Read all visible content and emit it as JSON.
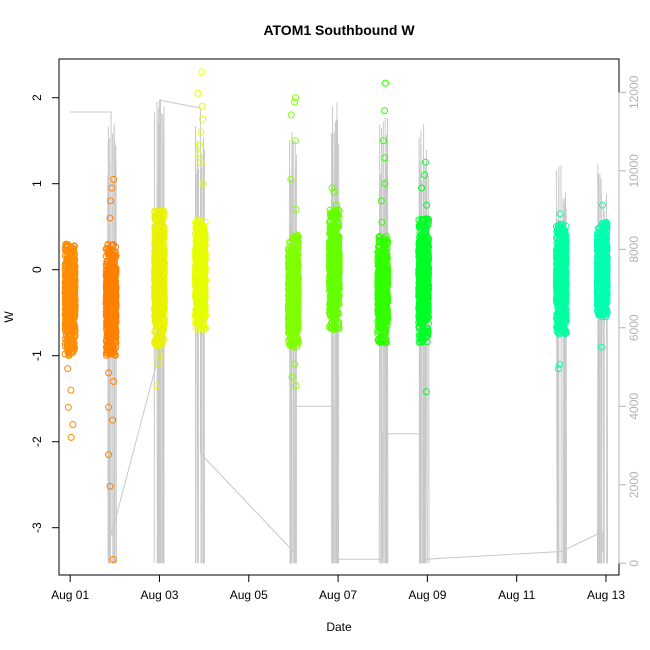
{
  "chart_data": {
    "type": "scatter",
    "title": "ATOM1 Southbound W",
    "xlabel": "Date",
    "ylabel": "W",
    "x_range": [
      "2015-07-31T18:00",
      "2015-08-13T07:00"
    ],
    "ylim": [
      -3.55,
      2.45
    ],
    "y2lim": [
      -300,
      12850
    ],
    "x_ticks": [
      {
        "date": "2015-08-01",
        "label": "Aug 01"
      },
      {
        "date": "2015-08-03",
        "label": "Aug 03"
      },
      {
        "date": "2015-08-05",
        "label": "Aug 05"
      },
      {
        "date": "2015-08-07",
        "label": "Aug 07"
      },
      {
        "date": "2015-08-09",
        "label": "Aug 09"
      },
      {
        "date": "2015-08-11",
        "label": "Aug 11"
      },
      {
        "date": "2015-08-13",
        "label": "Aug 13"
      }
    ],
    "y_ticks": [
      "-3",
      "-2",
      "-1",
      "0",
      "1",
      "2"
    ],
    "y2_ticks": [
      "0",
      "2000",
      "4000",
      "6000",
      "8000",
      "10000",
      "12000"
    ],
    "grid": false,
    "legend": "none",
    "colors": {
      "axis": "#000000",
      "right_axis": "#b3b3b3",
      "depth_line": "#c8c8c8"
    },
    "series": [
      {
        "color": "#ff8c00",
        "x": "2015-08-01T00:00",
        "y_min": -1.0,
        "y_max": 0.3,
        "outliers": [
          -1.95,
          -1.8,
          -1.6,
          -1.4,
          -1.15,
          -0.9,
          -0.72,
          0.25
        ]
      },
      {
        "color": "#ff8000",
        "x": "2015-08-01T22:00",
        "y_min": -1.0,
        "y_max": 0.3,
        "outliers": [
          -3.37,
          -2.52,
          -2.15,
          -1.75,
          -1.6,
          -1.3,
          -1.2,
          0.6,
          0.8,
          0.95,
          1.05
        ]
      },
      {
        "color": "#eaf200",
        "x": "2015-08-03T00:00",
        "y_min": -0.9,
        "y_max": 0.7,
        "outliers": [
          -1.35,
          -1.1,
          -1.0,
          0.65
        ]
      },
      {
        "color": "#e6ff00",
        "x": "2015-08-03T22:00",
        "y_min": -0.7,
        "y_max": 0.6,
        "outliers": [
          1.0,
          1.25,
          1.35,
          1.45,
          1.6,
          1.75,
          1.9,
          2.05,
          2.3
        ]
      },
      {
        "color": "#80ff00",
        "x": "2015-08-06T00:00",
        "y_min": -0.9,
        "y_max": 0.4,
        "outliers": [
          -1.35,
          -1.25,
          -1.1,
          0.7,
          1.05,
          1.5,
          1.8,
          1.95,
          2.0
        ]
      },
      {
        "color": "#66ff00",
        "x": "2015-08-06T22:00",
        "y_min": -0.7,
        "y_max": 0.7,
        "outliers": [
          0.75,
          0.9,
          0.95
        ]
      },
      {
        "color": "#33ff00",
        "x": "2015-08-08T00:00",
        "y_min": -0.85,
        "y_max": 0.4,
        "outliers": [
          0.55,
          0.8,
          1.0,
          1.3,
          1.5,
          1.85,
          2.17
        ]
      },
      {
        "color": "#00ff26",
        "x": "2015-08-08T22:00",
        "y_min": -0.85,
        "y_max": 0.6,
        "outliers": [
          -1.42,
          0.75,
          0.95,
          1.1,
          1.25
        ]
      },
      {
        "color": "#00ffa0",
        "x": "2015-08-12T00:00",
        "y_min": -0.75,
        "y_max": 0.55,
        "outliers": [
          -1.15,
          -1.1,
          0.65
        ]
      },
      {
        "color": "#00ffb0",
        "x": "2015-08-12T22:00",
        "y_min": -0.55,
        "y_max": 0.55,
        "outliers": [
          -0.9,
          0.75
        ]
      }
    ],
    "depth_series": {
      "points": [
        [
          "2015-08-01T00:00",
          11500
        ],
        [
          "2015-08-01T22:00",
          11500
        ],
        [
          "2015-08-01T22:00",
          700
        ],
        [
          "2015-08-02T22:00",
          5000
        ],
        [
          "2015-08-03T00:00",
          11800
        ],
        [
          "2015-08-03T22:00",
          11600
        ],
        [
          "2015-08-03T22:00",
          2800
        ],
        [
          "2015-08-06T00:00",
          300
        ],
        [
          "2015-08-06T00:00",
          4000
        ],
        [
          "2015-08-06T22:00",
          4000
        ],
        [
          "2015-08-06T22:00",
          100
        ],
        [
          "2015-08-08T00:00",
          100
        ],
        [
          "2015-08-08T00:00",
          3300
        ],
        [
          "2015-08-08T22:00",
          3300
        ],
        [
          "2015-08-08T22:00",
          100
        ],
        [
          "2015-08-12T00:00",
          300
        ],
        [
          "2015-08-12T22:00",
          800
        ],
        [
          "2015-08-12T22:00",
          300
        ]
      ],
      "casts": [
        {
          "x": "2015-08-01T22:00",
          "top": 11500
        },
        {
          "x": "2015-08-03T00:00",
          "top": 12000
        },
        {
          "x": "2015-08-03T22:00",
          "top": 11600
        },
        {
          "x": "2015-08-06T00:00",
          "top": 11000
        },
        {
          "x": "2015-08-06T22:00",
          "top": 11800
        },
        {
          "x": "2015-08-08T00:00",
          "top": 11400
        },
        {
          "x": "2015-08-08T22:00",
          "top": 11300
        },
        {
          "x": "2015-08-12T00:00",
          "top": 10200
        },
        {
          "x": "2015-08-12T22:00",
          "top": 10200
        }
      ]
    }
  }
}
